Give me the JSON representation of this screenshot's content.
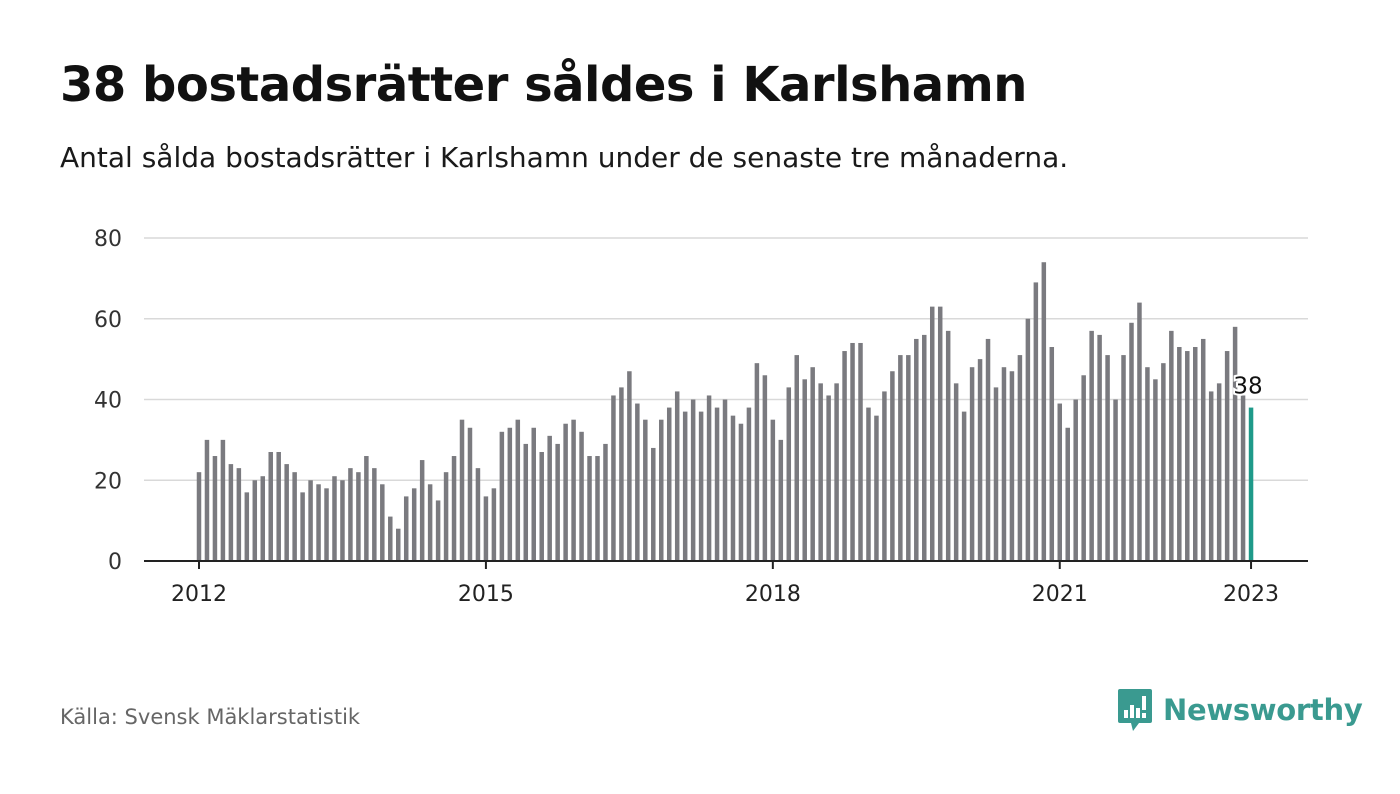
{
  "header": {
    "title": "38 bostadsrätter såldes i Karlshamn",
    "subtitle": "Antal sålda bostadsrätter i Karlshamn under de senaste tre månaderna."
  },
  "footer": {
    "source": "Källa: Svensk Mäklarstatistik",
    "brand": "Newsworthy",
    "brand_icon": "bar-chart-speech-bubble-icon"
  },
  "colors": {
    "bar": "#7a7a7f",
    "highlight": "#1f9a8a",
    "grid": "#d9d9d9",
    "axis": "#222222",
    "brand": "#3a9a90"
  },
  "chart_data": {
    "type": "bar",
    "title": "38 bostadsrätter såldes i Karlshamn",
    "subtitle": "Antal sålda bostadsrätter i Karlshamn under de senaste tre månaderna.",
    "xlabel": "",
    "ylabel": "",
    "ylim": [
      0,
      80
    ],
    "yticks": [
      "0",
      "20",
      "40",
      "60",
      "80"
    ],
    "xticks": [
      {
        "label": "2012",
        "index": 0
      },
      {
        "label": "2015",
        "index": 36
      },
      {
        "label": "2018",
        "index": 72
      },
      {
        "label": "2021",
        "index": 108
      },
      {
        "label": "2023",
        "index": 132
      }
    ],
    "x_start": "2012-01",
    "x_end": "2023-01",
    "frequency": "monthly",
    "grid": true,
    "highlight_last": true,
    "annotation": "38",
    "values": [
      22,
      30,
      26,
      30,
      24,
      23,
      17,
      20,
      21,
      27,
      27,
      24,
      22,
      17,
      20,
      19,
      18,
      21,
      20,
      23,
      22,
      26,
      23,
      19,
      11,
      8,
      16,
      18,
      25,
      19,
      15,
      22,
      26,
      35,
      33,
      23,
      16,
      18,
      32,
      33,
      35,
      29,
      33,
      27,
      31,
      29,
      34,
      35,
      32,
      26,
      26,
      29,
      41,
      43,
      47,
      39,
      35,
      28,
      35,
      38,
      42,
      37,
      40,
      37,
      41,
      38,
      40,
      36,
      34,
      38,
      49,
      46,
      35,
      30,
      43,
      51,
      45,
      48,
      44,
      41,
      44,
      52,
      54,
      54,
      38,
      36,
      42,
      47,
      51,
      51,
      55,
      56,
      63,
      63,
      57,
      44,
      37,
      48,
      50,
      55,
      43,
      48,
      47,
      51,
      60,
      69,
      74,
      53,
      39,
      33,
      40,
      46,
      57,
      56,
      51,
      40,
      51,
      59,
      64,
      48,
      45,
      49,
      57,
      53,
      52,
      53,
      55,
      42,
      44,
      52,
      58,
      41,
      38
    ]
  }
}
